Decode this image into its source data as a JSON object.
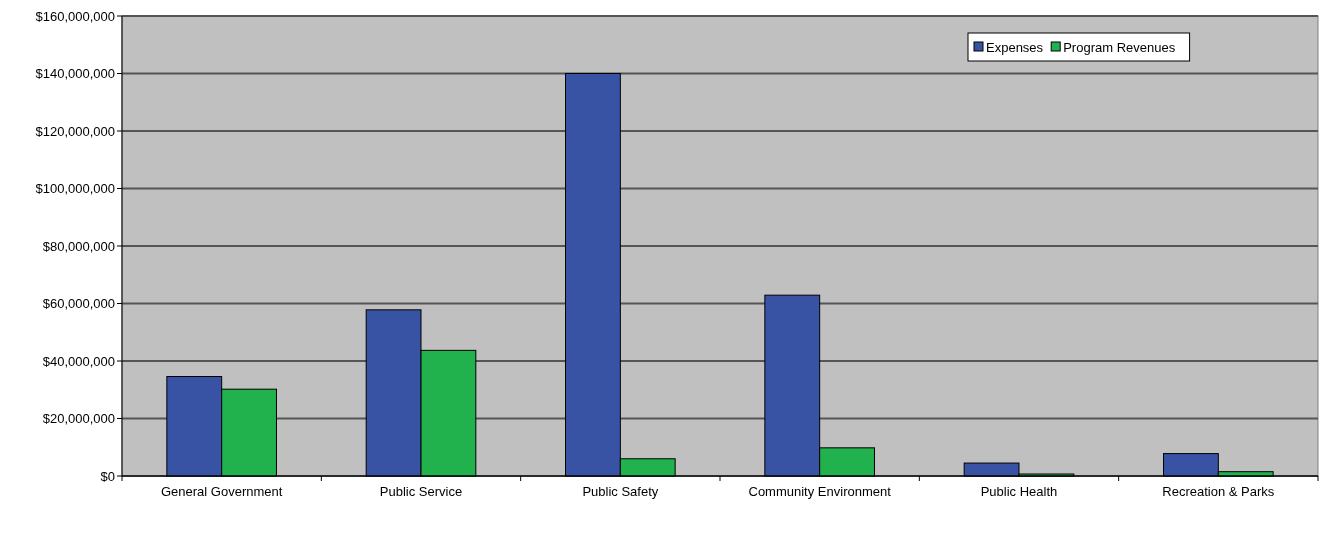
{
  "chart_data": {
    "type": "bar",
    "categories": [
      "General Government",
      "Public Service",
      "Public Safety",
      "Community Environment",
      "Public Health",
      "Recreation & Parks"
    ],
    "series": [
      {
        "name": "Expenses",
        "color": "#3953a4",
        "values": [
          34600000,
          57800000,
          140000000,
          62900000,
          4500000,
          7800000
        ]
      },
      {
        "name": "Program Revenues",
        "color": "#21b14d",
        "values": [
          30200000,
          43700000,
          6000000,
          9800000,
          700000,
          1500000
        ]
      }
    ],
    "ylim": [
      0,
      160000000
    ],
    "yticks": [
      {
        "value": 0,
        "label": "$0"
      },
      {
        "value": 20000000,
        "label": "$20,000,000"
      },
      {
        "value": 40000000,
        "label": "$40,000,000"
      },
      {
        "value": 60000000,
        "label": "$60,000,000"
      },
      {
        "value": 80000000,
        "label": "$80,000,000"
      },
      {
        "value": 100000000,
        "label": "$100,000,000"
      },
      {
        "value": 120000000,
        "label": "$120,000,000"
      },
      {
        "value": 140000000,
        "label": "$140,000,000"
      },
      {
        "value": 160000000,
        "label": "$160,000,000"
      }
    ],
    "grid": "y",
    "legend": "top right"
  }
}
